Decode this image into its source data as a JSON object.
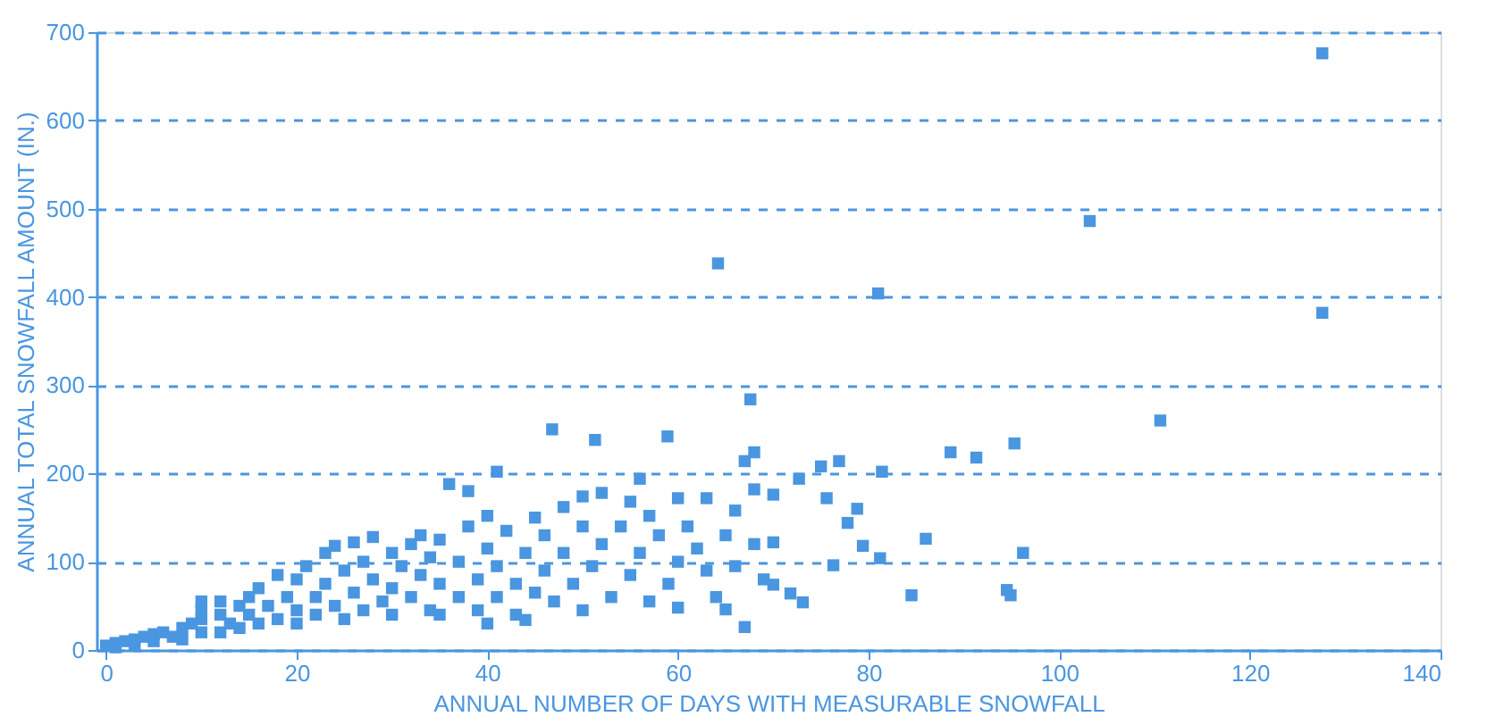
{
  "chart_data": {
    "type": "scatter",
    "xlabel": "ANNUAL NUMBER OF DAYS WITH MEASURABLE SNOWFALL",
    "ylabel": "ANNUAL TOTAL SNOWFALL AMOUNT (IN.)",
    "xlim": [
      -1,
      140
    ],
    "xticks": [
      0,
      20,
      40,
      60,
      80,
      100,
      120,
      140
    ],
    "ylim": [
      0,
      700
    ],
    "yticks": [
      0,
      100,
      200,
      300,
      400,
      500,
      600,
      700
    ],
    "grid": "y",
    "marker": "square",
    "series": [
      {
        "color": "#4a96e0",
        "x": [
          0,
          1,
          2,
          3,
          4,
          5,
          1,
          3,
          5,
          6,
          7,
          8,
          8,
          9,
          10,
          10,
          10,
          10,
          12,
          12,
          12,
          13,
          14,
          14,
          15,
          15,
          16,
          16,
          17,
          18,
          18,
          19,
          20,
          20,
          20,
          21,
          22,
          22,
          23,
          23,
          24,
          24,
          25,
          25,
          26,
          26,
          27,
          27,
          28,
          28,
          29,
          30,
          30,
          30,
          31,
          32,
          32,
          33,
          33,
          34,
          34,
          35,
          35,
          35,
          36,
          37,
          37,
          38,
          38,
          39,
          39,
          40,
          40,
          40,
          41,
          41,
          41,
          42,
          43,
          43,
          44,
          44,
          45,
          45,
          46,
          46,
          47,
          48,
          48,
          49,
          50,
          50,
          50,
          51,
          52,
          52,
          53,
          54,
          55,
          55,
          56,
          56,
          57,
          57,
          58,
          59,
          60,
          60,
          60,
          61,
          62,
          63,
          63,
          64,
          65,
          65,
          66,
          66,
          67,
          67,
          68,
          68,
          68,
          69,
          70,
          70,
          70,
          46.8,
          51.3,
          58.9,
          64.2,
          67.6,
          72.7,
          75,
          76.9,
          75.6,
          78.8,
          77.8,
          79.4,
          81.2,
          76.3,
          73.1,
          71.8,
          81.4,
          86,
          96.2,
          84.5,
          94.9,
          94.5,
          88.6,
          91.3,
          95.3,
          110.6,
          103.2,
          81,
          127.6,
          127.6
        ],
        "values": [
          5,
          8,
          10,
          12,
          15,
          18,
          3,
          6,
          10,
          20,
          15,
          25,
          12,
          30,
          20,
          35,
          45,
          55,
          20,
          40,
          55,
          30,
          50,
          25,
          40,
          60,
          30,
          70,
          50,
          85,
          35,
          60,
          45,
          80,
          30,
          95,
          60,
          40,
          110,
          75,
          118,
          50,
          90,
          35,
          122,
          65,
          100,
          45,
          128,
          80,
          55,
          110,
          70,
          40,
          95,
          120,
          60,
          130,
          85,
          45,
          105,
          75,
          125,
          40,
          188,
          100,
          60,
          180,
          140,
          80,
          45,
          152,
          115,
          30,
          202,
          95,
          60,
          135,
          75,
          40,
          34,
          110,
          150,
          65,
          90,
          130,
          55,
          162,
          110,
          75,
          174,
          140,
          45,
          95,
          178,
          120,
          60,
          140,
          168,
          85,
          194,
          110,
          152,
          55,
          130,
          75,
          172,
          48,
          100,
          140,
          115,
          90,
          172,
          60,
          130,
          46,
          158,
          95,
          26,
          214,
          182,
          224,
          120,
          80,
          176,
          122,
          74,
          250,
          238,
          242,
          438,
          284,
          194,
          208,
          214,
          172,
          160,
          144,
          118,
          104,
          96,
          54,
          64,
          202,
          126,
          110,
          62,
          62,
          68,
          224,
          218,
          234,
          260,
          486,
          404,
          382,
          676
        ]
      }
    ]
  }
}
